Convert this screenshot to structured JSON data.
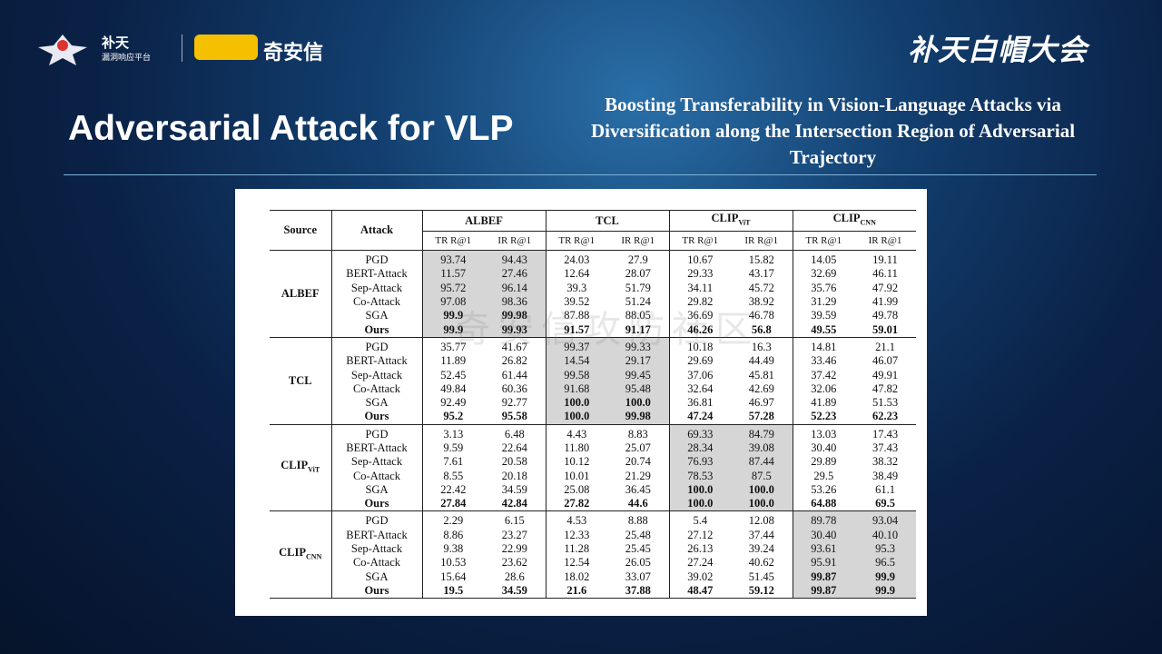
{
  "header": {
    "logo_text": "补天",
    "logo_sub": "漏洞响应平台",
    "brand": "奇安信",
    "event": "补天白帽大会"
  },
  "title": "Adversarial Attack for VLP",
  "paper_title": "Boosting Transferability in Vision-Language Attacks via Diversification along the Intersection Region of Adversarial Trajectory",
  "watermark": "奇安信攻防社区",
  "table": {
    "source_header": "Source",
    "attack_header": "Attack",
    "models": [
      {
        "name": "ALBEF"
      },
      {
        "name": "TCL"
      },
      {
        "name": "CLIP",
        "sub": "ViT"
      },
      {
        "name": "CLIP",
        "sub": "CNN"
      }
    ],
    "metrics": [
      "TR R@1",
      "IR R@1"
    ],
    "groups": [
      {
        "source": {
          "name": "ALBEF"
        },
        "highlight_model": 0,
        "rows": [
          {
            "attack": "PGD",
            "values": [
              "93.74",
              "94.43",
              "24.03",
              "27.9",
              "10.67",
              "15.82",
              "14.05",
              "19.11"
            ]
          },
          {
            "attack": "BERT-Attack",
            "values": [
              "11.57",
              "27.46",
              "12.64",
              "28.07",
              "29.33",
              "43.17",
              "32.69",
              "46.11"
            ]
          },
          {
            "attack": "Sep-Attack",
            "values": [
              "95.72",
              "96.14",
              "39.3",
              "51.79",
              "34.11",
              "45.72",
              "35.76",
              "47.92"
            ]
          },
          {
            "attack": "Co-Attack",
            "values": [
              "97.08",
              "98.36",
              "39.52",
              "51.24",
              "29.82",
              "38.92",
              "31.29",
              "41.99"
            ]
          },
          {
            "attack": "SGA",
            "values": [
              "99.9",
              "99.98",
              "87.88",
              "88.05",
              "36.69",
              "46.78",
              "39.59",
              "49.78"
            ],
            "bold_cells": [
              0,
              1
            ]
          },
          {
            "attack": "Ours",
            "values": [
              "99.9",
              "99.93",
              "91.57",
              "91.17",
              "46.26",
              "56.8",
              "49.55",
              "59.01"
            ],
            "bold_row": true
          }
        ]
      },
      {
        "source": {
          "name": "TCL"
        },
        "highlight_model": 1,
        "rows": [
          {
            "attack": "PGD",
            "values": [
              "35.77",
              "41.67",
              "99.37",
              "99.33",
              "10.18",
              "16.3",
              "14.81",
              "21.1"
            ]
          },
          {
            "attack": "BERT-Attack",
            "values": [
              "11.89",
              "26.82",
              "14.54",
              "29.17",
              "29.69",
              "44.49",
              "33.46",
              "46.07"
            ]
          },
          {
            "attack": "Sep-Attack",
            "values": [
              "52.45",
              "61.44",
              "99.58",
              "99.45",
              "37.06",
              "45.81",
              "37.42",
              "49.91"
            ]
          },
          {
            "attack": "Co-Attack",
            "values": [
              "49.84",
              "60.36",
              "91.68",
              "95.48",
              "32.64",
              "42.69",
              "32.06",
              "47.82"
            ]
          },
          {
            "attack": "SGA",
            "values": [
              "92.49",
              "92.77",
              "100.0",
              "100.0",
              "36.81",
              "46.97",
              "41.89",
              "51.53"
            ],
            "bold_cells": [
              2,
              3
            ]
          },
          {
            "attack": "Ours",
            "values": [
              "95.2",
              "95.58",
              "100.0",
              "99.98",
              "47.24",
              "57.28",
              "52.23",
              "62.23"
            ],
            "bold_row": true
          }
        ]
      },
      {
        "source": {
          "name": "CLIP",
          "sub": "ViT"
        },
        "highlight_model": 2,
        "rows": [
          {
            "attack": "PGD",
            "values": [
              "3.13",
              "6.48",
              "4.43",
              "8.83",
              "69.33",
              "84.79",
              "13.03",
              "17.43"
            ]
          },
          {
            "attack": "BERT-Attack",
            "values": [
              "9.59",
              "22.64",
              "11.80",
              "25.07",
              "28.34",
              "39.08",
              "30.40",
              "37.43"
            ]
          },
          {
            "attack": "Sep-Attack",
            "values": [
              "7.61",
              "20.58",
              "10.12",
              "20.74",
              "76.93",
              "87.44",
              "29.89",
              "38.32"
            ]
          },
          {
            "attack": "Co-Attack",
            "values": [
              "8.55",
              "20.18",
              "10.01",
              "21.29",
              "78.53",
              "87.5",
              "29.5",
              "38.49"
            ]
          },
          {
            "attack": "SGA",
            "values": [
              "22.42",
              "34.59",
              "25.08",
              "36.45",
              "100.0",
              "100.0",
              "53.26",
              "61.1"
            ],
            "bold_cells": [
              4,
              5
            ]
          },
          {
            "attack": "Ours",
            "values": [
              "27.84",
              "42.84",
              "27.82",
              "44.6",
              "100.0",
              "100.0",
              "64.88",
              "69.5"
            ],
            "bold_row": true
          }
        ]
      },
      {
        "source": {
          "name": "CLIP",
          "sub": "CNN"
        },
        "highlight_model": 3,
        "rows": [
          {
            "attack": "PGD",
            "values": [
              "2.29",
              "6.15",
              "4.53",
              "8.88",
              "5.4",
              "12.08",
              "89.78",
              "93.04"
            ]
          },
          {
            "attack": "BERT-Attack",
            "values": [
              "8.86",
              "23.27",
              "12.33",
              "25.48",
              "27.12",
              "37.44",
              "30.40",
              "40.10"
            ]
          },
          {
            "attack": "Sep-Attack",
            "values": [
              "9.38",
              "22.99",
              "11.28",
              "25.45",
              "26.13",
              "39.24",
              "93.61",
              "95.3"
            ]
          },
          {
            "attack": "Co-Attack",
            "values": [
              "10.53",
              "23.62",
              "12.54",
              "26.05",
              "27.24",
              "40.62",
              "95.91",
              "96.5"
            ]
          },
          {
            "attack": "SGA",
            "values": [
              "15.64",
              "28.6",
              "18.02",
              "33.07",
              "39.02",
              "51.45",
              "99.87",
              "99.9"
            ],
            "bold_cells": [
              6,
              7
            ]
          },
          {
            "attack": "Ours",
            "values": [
              "19.5",
              "34.59",
              "21.6",
              "37.88",
              "48.47",
              "59.12",
              "99.87",
              "99.9"
            ],
            "bold_row": true
          }
        ]
      }
    ]
  }
}
